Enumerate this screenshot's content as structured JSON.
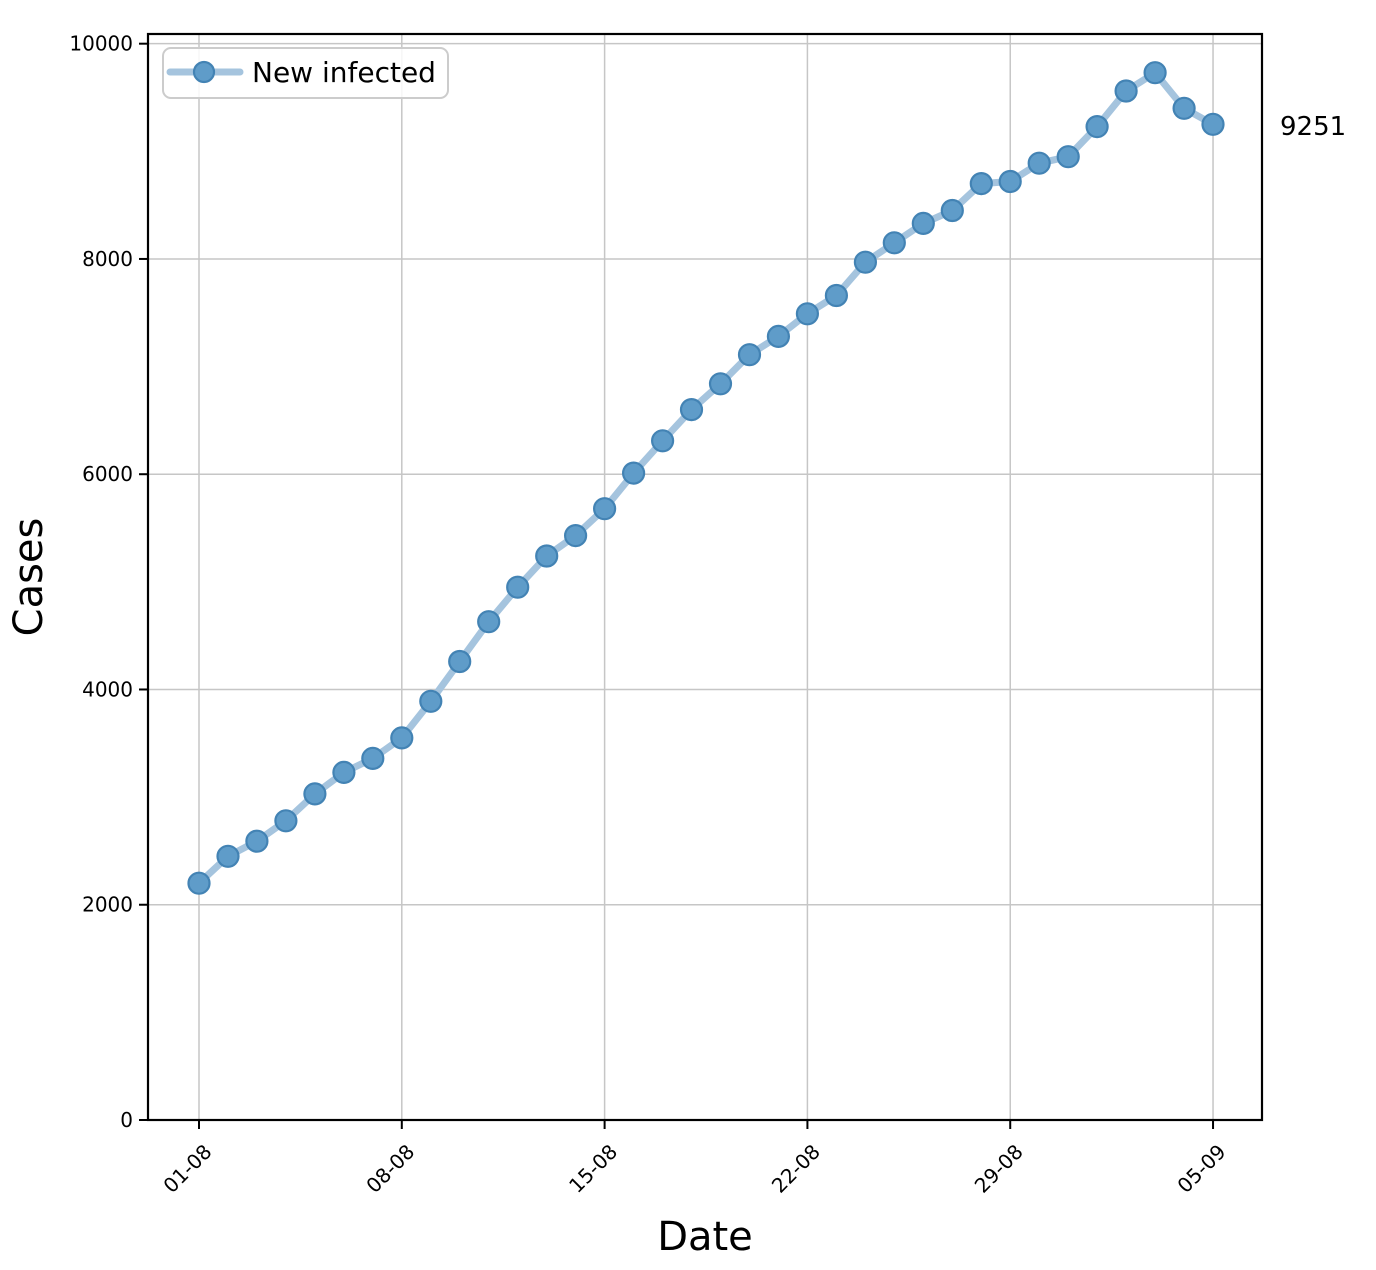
{
  "chart_data": {
    "type": "line",
    "title": "",
    "xlabel": "Date",
    "ylabel": "Cases",
    "x": [
      "01-08",
      "02-08",
      "03-08",
      "04-08",
      "05-08",
      "06-08",
      "07-08",
      "08-08",
      "09-08",
      "10-08",
      "11-08",
      "12-08",
      "13-08",
      "14-08",
      "15-08",
      "16-08",
      "17-08",
      "18-08",
      "19-08",
      "20-08",
      "21-08",
      "22-08",
      "23-08",
      "24-08",
      "25-08",
      "26-08",
      "27-08",
      "28-08",
      "29-08",
      "30-08",
      "31-08",
      "01-09",
      "02-09",
      "03-09",
      "04-09",
      "05-09"
    ],
    "series": [
      {
        "name": "New infected",
        "values": [
          2200,
          2450,
          2590,
          2780,
          3030,
          3230,
          3360,
          3550,
          3890,
          4260,
          4630,
          4950,
          5240,
          5430,
          5680,
          6010,
          6310,
          6600,
          6840,
          7110,
          7280,
          7490,
          7660,
          7970,
          8150,
          8330,
          8450,
          8700,
          8720,
          8890,
          8950,
          9230,
          9560,
          9730,
          9400,
          9251
        ]
      }
    ],
    "x_tick_labels": [
      "01-08",
      "08-08",
      "15-08",
      "22-08",
      "29-08",
      "05-09"
    ],
    "x_tick_indices": [
      0,
      7,
      14,
      21,
      28,
      35
    ],
    "y_ticks": [
      0,
      2000,
      4000,
      6000,
      8000,
      10000
    ],
    "ylim": [
      0,
      10090
    ],
    "xlim_pad": [
      1.76,
      1.69
    ],
    "grid": true,
    "legend_position": "upper left",
    "annotation": {
      "text": "9251",
      "value": 9251,
      "color": "#1f77b4"
    },
    "colors": {
      "line": "#a5c4de",
      "marker_fill": "#5f9cc9",
      "marker_edge": "#4383b4",
      "grid": "#c6c6c6",
      "axis": "#000000"
    }
  }
}
